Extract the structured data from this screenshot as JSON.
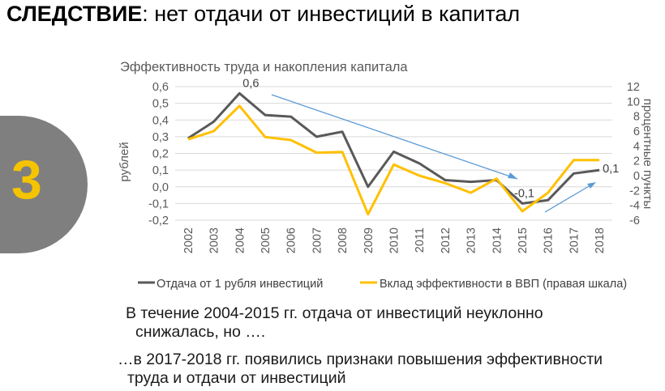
{
  "slide": {
    "headline_bold": "СЛЕДСТВИЕ",
    "headline_rest": ":  нет отдачи от инвестиций в капитал",
    "badge_number": "3",
    "note1_line1": "В течение 2004-2015 гг. отдача от инвестиций неуклонно",
    "note1_line2": "снижалась, но ….",
    "note2_line1": "…в 2017-2018 гг. появились признаки повышения эффективности",
    "note2_line2": "труда и отдачи от инвестиций"
  },
  "colors": {
    "series_left": "#595959",
    "series_right": "#ffc000",
    "arrow": "#5b9bd5",
    "badge": "#7f7f7f",
    "badge_text": "#f5c400"
  },
  "chart_data": {
    "type": "line",
    "title": "Эффективность труда и накопления капитала",
    "x": [
      "2002",
      "2003",
      "2004",
      "2005",
      "2006",
      "2007",
      "2008",
      "2009",
      "2010",
      "2011",
      "2012",
      "2013",
      "2014",
      "2015",
      "2016",
      "2017",
      "2018"
    ],
    "ylabel": "рублей",
    "y2label": "процентные пункты",
    "ylim": [
      -0.2,
      0.6
    ],
    "y2lim": [
      -6,
      12
    ],
    "yticks": [
      "0,6",
      "0,5",
      "0,4",
      "0,3",
      "0,2",
      "0,1",
      "0,0",
      "-0,1",
      "-0,2"
    ],
    "y2ticks": [
      "12",
      "10",
      "8",
      "6",
      "4",
      "2",
      "0",
      "-2",
      "-4",
      "-6"
    ],
    "series": [
      {
        "name": "Отдача от 1 рубля инвестиций",
        "axis": "left",
        "values": [
          0.29,
          0.39,
          0.56,
          0.43,
          0.42,
          0.3,
          0.33,
          0.0,
          0.21,
          0.14,
          0.04,
          0.03,
          0.04,
          -0.1,
          -0.08,
          0.08,
          0.1
        ]
      },
      {
        "name": "Вклад эффективности в ВВП (правая шкала)",
        "axis": "right",
        "values": [
          4.9,
          6.0,
          9.4,
          5.2,
          4.8,
          3.1,
          3.2,
          -5.2,
          1.5,
          0.0,
          -1.0,
          -2.3,
          -0.4,
          -4.8,
          -2.3,
          2.1,
          2.1
        ]
      }
    ],
    "annotations": [
      {
        "text": "0,6",
        "year": "2004"
      },
      {
        "text": "-0,1",
        "year": "2015"
      },
      {
        "text": "0,1",
        "year": "2018"
      }
    ],
    "legend_position": "bottom"
  }
}
